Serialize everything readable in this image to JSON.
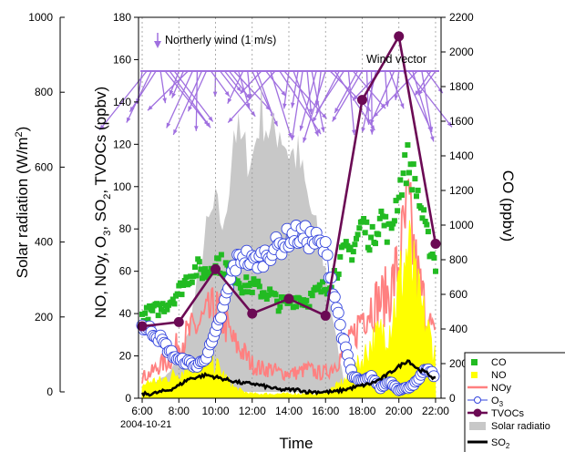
{
  "chart_data": {
    "type": "line",
    "xlabel": "Time",
    "date_label": "2004-10-21",
    "x_ticks": [
      "6:00",
      "8:00",
      "10:00",
      "12:00",
      "14:00",
      "16:00",
      "18:00",
      "20:00",
      "22:00"
    ],
    "xlim_hours": [
      5.8,
      22.3
    ],
    "left_axis": {
      "label": "NO, NOy, O3, SO2, TVOCs (ppbv)",
      "label_parts": [
        "NO, NOy, O",
        "3",
        ", SO",
        "2",
        ", TVOCs (ppbv)"
      ],
      "ylim": [
        0,
        180
      ],
      "ticks": [
        0,
        20,
        40,
        60,
        80,
        100,
        120,
        140,
        160,
        180
      ]
    },
    "right_axis": {
      "label": "CO (ppbv)",
      "ylim": [
        0,
        2200
      ],
      "ticks": [
        0,
        200,
        400,
        600,
        800,
        1000,
        1200,
        1400,
        1600,
        1800,
        2000,
        2200
      ]
    },
    "solar_axis": {
      "label": "Solar radiation (W/m",
      "label_sup": "2",
      "label_end": ")",
      "ylim": [
        0,
        1000
      ],
      "ticks": [
        0,
        200,
        400,
        600,
        800,
        1000
      ]
    },
    "wind_note": "Northerly wind (1 m/s)",
    "wind_vector_label": "Wind vector",
    "legend": [
      {
        "key": "co",
        "label": "CO",
        "sub": ""
      },
      {
        "key": "no",
        "label": "NO",
        "sub": ""
      },
      {
        "key": "noy",
        "label": "NOy",
        "sub": ""
      },
      {
        "key": "o3",
        "label": "O",
        "sub": "3"
      },
      {
        "key": "tvocs",
        "label": "TVOCs",
        "sub": ""
      },
      {
        "key": "solar",
        "label": "Solar radiatio",
        "sub": ""
      },
      {
        "key": "so2",
        "label": "SO",
        "sub": "2"
      }
    ],
    "colors": {
      "co": "#22bb22",
      "no": "#ffff00",
      "noy": "#ff8080",
      "o3": "#3344dd",
      "tvocs": "#6b0a54",
      "solar": "#c8c8c8",
      "so2": "#000000",
      "wind": "#a070e0"
    },
    "series": [
      {
        "name": "TVOCs",
        "axis": "left",
        "hours": [
          6,
          8,
          10,
          12,
          14,
          16,
          18,
          20,
          22
        ],
        "values": [
          34,
          36,
          61,
          40,
          47,
          39,
          141,
          171,
          73
        ]
      },
      {
        "name": "Solar radiation",
        "axis": "solar",
        "hours": [
          6.5,
          7.5,
          8.5,
          9,
          9.5,
          10,
          10.5,
          11,
          11.5,
          12,
          12.5,
          13,
          13.5,
          14,
          14.5,
          15,
          15.5,
          16,
          16.5,
          17
        ],
        "values": [
          20,
          50,
          150,
          290,
          430,
          500,
          430,
          710,
          650,
          620,
          760,
          680,
          710,
          640,
          630,
          520,
          430,
          330,
          160,
          30
        ]
      },
      {
        "name": "CO",
        "axis": "right",
        "hours": [
          6,
          6.5,
          7,
          7.5,
          8,
          8.5,
          9,
          9.5,
          10,
          10.5,
          11,
          11.5,
          12,
          12.5,
          13,
          13.5,
          14,
          14.5,
          15,
          15.5,
          16,
          16.5,
          17,
          17.5,
          18,
          18.5,
          19,
          19.5,
          20,
          20.5,
          21,
          21.5,
          22
        ],
        "values": [
          480,
          500,
          520,
          560,
          620,
          700,
          750,
          720,
          800,
          760,
          720,
          650,
          650,
          620,
          600,
          540,
          560,
          580,
          560,
          610,
          640,
          720,
          840,
          860,
          1020,
          900,
          1060,
          940,
          1200,
          1380,
          1200,
          940,
          780
        ]
      },
      {
        "name": "O3",
        "axis": "left",
        "hours": [
          6,
          6.5,
          7,
          7.5,
          8,
          8.5,
          9,
          9.5,
          10,
          10.5,
          11,
          11.5,
          12,
          12.5,
          13,
          13.5,
          14,
          14.5,
          15,
          15.5,
          16,
          16.5,
          17,
          17.5,
          18,
          18.5,
          19,
          19.5,
          20,
          20.5,
          21,
          21.5,
          22
        ],
        "values": [
          34,
          32,
          28,
          22,
          18,
          17,
          15,
          20,
          30,
          45,
          62,
          68,
          64,
          66,
          70,
          72,
          76,
          77,
          76,
          74,
          70,
          48,
          26,
          10,
          8,
          10,
          5,
          8,
          4,
          5,
          8,
          14,
          10
        ]
      },
      {
        "name": "NOy",
        "axis": "left",
        "hours": [
          6,
          6.5,
          7,
          7.5,
          8,
          8.5,
          9,
          9.5,
          10,
          10.5,
          11,
          11.5,
          12,
          12.5,
          13,
          13.5,
          14,
          14.5,
          15,
          15.5,
          16,
          16.5,
          17,
          17.5,
          18,
          18.5,
          19,
          19.5,
          20,
          20.5,
          21,
          21.5,
          22
        ],
        "values": [
          10,
          12,
          16,
          18,
          26,
          30,
          34,
          38,
          42,
          36,
          26,
          22,
          16,
          14,
          14,
          12,
          12,
          12,
          14,
          12,
          12,
          16,
          22,
          28,
          40,
          44,
          46,
          50,
          64,
          88,
          58,
          40,
          26
        ]
      },
      {
        "name": "NO",
        "axis": "left",
        "hours": [
          6,
          6.5,
          7,
          7.5,
          8,
          8.5,
          9,
          9.5,
          10,
          10.5,
          11,
          11.5,
          12,
          12.5,
          13,
          13.5,
          14,
          14.5,
          15,
          15.5,
          16,
          16.5,
          17,
          17.5,
          18,
          18.5,
          19,
          19.5,
          20,
          20.5,
          21,
          21.5,
          22
        ],
        "values": [
          6,
          8,
          8,
          10,
          12,
          14,
          16,
          18,
          16,
          10,
          5,
          3,
          2,
          2,
          2,
          2,
          2,
          2,
          2,
          2,
          3,
          5,
          8,
          12,
          18,
          26,
          30,
          34,
          52,
          70,
          48,
          34,
          20
        ]
      },
      {
        "name": "SO2",
        "axis": "left",
        "hours": [
          6,
          6.5,
          7,
          7.5,
          8,
          8.5,
          9,
          9.5,
          10,
          10.5,
          11,
          11.5,
          12,
          12.5,
          13,
          13.5,
          14,
          14.5,
          15,
          15.5,
          16,
          16.5,
          17,
          17.5,
          18,
          18.5,
          19,
          19.5,
          20,
          20.5,
          21,
          21.5,
          22
        ],
        "values": [
          2,
          2,
          3,
          4,
          6,
          9,
          10,
          11,
          10,
          9,
          8,
          7,
          7,
          6,
          5,
          4,
          4,
          4,
          3,
          3,
          3,
          3,
          4,
          5,
          6,
          7,
          9,
          12,
          15,
          18,
          14,
          12,
          9
        ]
      }
    ]
  }
}
